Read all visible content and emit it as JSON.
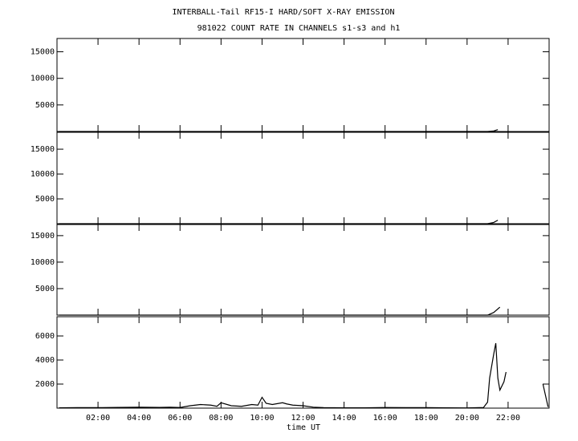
{
  "chart_data": [
    {
      "type": "line",
      "title": "INTERBALL-Tail RF15-I HARD/SOFT X-RAY EMISSION",
      "subtitle": "981022  COUNT RATE IN CHANNELS s1-s3 and h1",
      "x": [
        0.1,
        2,
        4,
        6,
        8,
        10,
        12,
        14,
        16,
        18,
        20,
        21.0,
        21.3,
        21.5
      ],
      "values": [
        0,
        0,
        0,
        0,
        0,
        0,
        0,
        0,
        0,
        0,
        0,
        0,
        100,
        350
      ],
      "color": "#000000",
      "xlim": [
        0,
        24
      ],
      "ylim": [
        0,
        17500
      ],
      "xticks": [
        2,
        4,
        6,
        8,
        10,
        12,
        14,
        16,
        18,
        20,
        22
      ],
      "yticks": [
        5000,
        10000,
        15000
      ]
    },
    {
      "type": "line",
      "x": [
        0.1,
        2,
        4,
        6,
        8,
        10,
        12,
        14,
        16,
        18,
        20,
        21.0,
        21.3,
        21.5
      ],
      "values": [
        0,
        0,
        0,
        0,
        0,
        0,
        0,
        0,
        0,
        0,
        0,
        0,
        250,
        700
      ],
      "color": "#000000",
      "xlim": [
        0,
        24
      ],
      "ylim": [
        0,
        18400
      ],
      "xticks": [
        2,
        4,
        6,
        8,
        10,
        12,
        14,
        16,
        18,
        20,
        22
      ],
      "yticks": [
        5000,
        10000,
        15000
      ]
    },
    {
      "type": "line",
      "x": [
        0.1,
        2,
        4,
        6,
        8,
        10,
        12,
        14,
        16,
        18,
        20,
        21.0,
        21.3,
        21.6
      ],
      "values": [
        0,
        0,
        0,
        0,
        0,
        0,
        0,
        0,
        0,
        0,
        0,
        0,
        500,
        1500
      ],
      "color": "#000000",
      "xlim": [
        0,
        24
      ],
      "ylim": [
        0,
        17100
      ],
      "xticks": [
        2,
        4,
        6,
        8,
        10,
        12,
        14,
        16,
        18,
        20,
        22
      ],
      "yticks": [
        5000,
        10000,
        15000
      ]
    },
    {
      "type": "line",
      "x_label": "time UT",
      "x": [
        0.1,
        1,
        2,
        3,
        4,
        5,
        5.5,
        6,
        6.5,
        7,
        7.5,
        7.8,
        8,
        8.5,
        9,
        9.5,
        9.8,
        10,
        10.2,
        10.5,
        11,
        11.2,
        11.5,
        12,
        12.5,
        13,
        14,
        15,
        16,
        17,
        18,
        19,
        20,
        20.8,
        21.0,
        21.1,
        21.2,
        21.3,
        21.4,
        21.5,
        21.6,
        21.8,
        21.9,
        22.8,
        23.7,
        23.95
      ],
      "values": [
        30,
        40,
        40,
        60,
        80,
        60,
        80,
        50,
        200,
        300,
        250,
        150,
        450,
        200,
        150,
        300,
        250,
        900,
        400,
        300,
        450,
        350,
        250,
        200,
        80,
        40,
        30,
        30,
        50,
        40,
        40,
        30,
        20,
        50,
        500,
        2500,
        3500,
        4500,
        5400,
        2500,
        1500,
        2200,
        3000,
        null,
        2000,
        100
      ],
      "color": "#000000",
      "xlim": [
        0,
        24
      ],
      "ylim": [
        0,
        7600
      ],
      "xticks": [
        {
          "value": 2,
          "label": "02:00"
        },
        {
          "value": 4,
          "label": "04:00"
        },
        {
          "value": 6,
          "label": "06:00"
        },
        {
          "value": 8,
          "label": "08:00"
        },
        {
          "value": 10,
          "label": "10:00"
        },
        {
          "value": 12,
          "label": "12:00"
        },
        {
          "value": 14,
          "label": "14:00"
        },
        {
          "value": 16,
          "label": "16:00"
        },
        {
          "value": 18,
          "label": "18:00"
        },
        {
          "value": 20,
          "label": "20:00"
        },
        {
          "value": 22,
          "label": "22:00"
        }
      ],
      "yticks": [
        2000,
        4000,
        6000
      ]
    }
  ]
}
